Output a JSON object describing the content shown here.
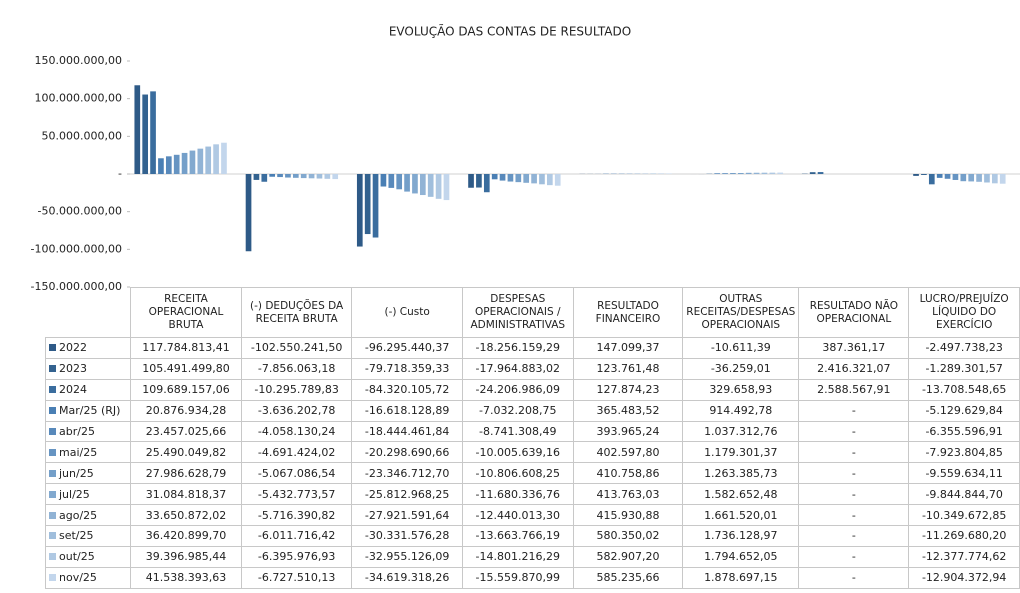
{
  "chart_data": {
    "type": "bar",
    "title": "EVOLUÇÃO DAS CONTAS DE RESULTADO",
    "categories": [
      "RECEITA OPERACIONAL BRUTA",
      "(-) DEDUÇÕES DA RECEITA BRUTA",
      "(-) Custo",
      "DESPESAS OPERACIONAIS / ADMINISTRATIVAS",
      "RESULTADO FINANCEIRO",
      "OUTRAS RECEITAS/DESPESAS OPERACIONAIS",
      "RESULTADO NÃO OPERACIONAL",
      "LUCRO/PREJUÍZO LÍQUIDO DO EXERCÍCIO"
    ],
    "ylim": [
      -150000000,
      150000000
    ],
    "yticks": [
      {
        "value": 150000000,
        "label": "150.000.000,00"
      },
      {
        "value": 100000000,
        "label": "100.000.000,00"
      },
      {
        "value": 50000000,
        "label": "50.000.000,00"
      },
      {
        "value": 0,
        "label": "-"
      },
      {
        "value": -50000000,
        "label": "-50.000.000,00"
      },
      {
        "value": -100000000,
        "label": "-100.000.000,00"
      },
      {
        "value": -150000000,
        "label": "-150.000.000,00"
      }
    ],
    "series": [
      {
        "name": "2022",
        "color": "#2e5a87",
        "values": [
          117784813.41,
          -102550241.5,
          -96295440.37,
          -18256159.29,
          147099.37,
          -10611.39,
          387361.17,
          -2497738.23
        ],
        "value_labels": [
          "117.784.813,41",
          "-102.550.241,50",
          "-96.295.440,37",
          "-18.256.159,29",
          "147.099,37",
          "-10.611,39",
          "387.361,17",
          "-2.497.738,23"
        ]
      },
      {
        "name": "2023",
        "color": "#33628f",
        "values": [
          105491499.8,
          -7856063.18,
          -79718359.33,
          -17964883.02,
          123761.48,
          -36259.01,
          2416321.07,
          -1289301.57
        ],
        "value_labels": [
          "105.491.499,80",
          "-7.856.063,18",
          "-79.718.359,33",
          "-17.964.883,02",
          "123.761,48",
          "-36.259,01",
          "2.416.321,07",
          "-1.289.301,57"
        ]
      },
      {
        "name": "2024",
        "color": "#3a6d9e",
        "values": [
          109689157.06,
          -10295789.83,
          -84320105.72,
          -24206986.09,
          127874.23,
          329658.93,
          2588567.91,
          -13708548.65
        ],
        "value_labels": [
          "109.689.157,06",
          "-10.295.789,83",
          "-84.320.105,72",
          "-24.206.986,09",
          "127.874,23",
          "329.658,93",
          "2.588.567,91",
          "-13.708.548,65"
        ]
      },
      {
        "name": "Mar/25 (RJ)",
        "color": "#4a7fb4",
        "values": [
          20876934.28,
          -3636202.78,
          -16618128.89,
          -7032208.75,
          365483.52,
          914492.78,
          null,
          -5129629.84
        ],
        "value_labels": [
          "20.876.934,28",
          "-3.636.202,78",
          "-16.618.128,89",
          "-7.032.208,75",
          "365.483,52",
          "914.492,78",
          "-",
          "-5.129.629,84"
        ]
      },
      {
        "name": "abr/25",
        "color": "#5889bb",
        "values": [
          23457025.66,
          -4058130.24,
          -18444461.84,
          -8741308.49,
          393965.24,
          1037312.76,
          null,
          -6355596.91
        ],
        "value_labels": [
          "23.457.025,66",
          "-4.058.130,24",
          "-18.444.461,84",
          "-8.741.308,49",
          "393.965,24",
          "1.037.312,76",
          "-",
          "-6.355.596,91"
        ]
      },
      {
        "name": "mai/25",
        "color": "#6694c2",
        "values": [
          25490049.82,
          -4691424.02,
          -20298690.66,
          -10005639.16,
          402597.8,
          1179301.37,
          null,
          -7923804.85
        ],
        "value_labels": [
          "25.490.049,82",
          "-4.691.424,02",
          "-20.298.690,66",
          "-10.005.639,16",
          "402.597,80",
          "1.179.301,37",
          "-",
          "-7.923.804,85"
        ]
      },
      {
        "name": "jun/25",
        "color": "#749fc9",
        "values": [
          27986628.79,
          -5067086.54,
          -23346712.7,
          -10806608.25,
          410758.86,
          1263385.73,
          null,
          -9559634.11
        ],
        "value_labels": [
          "27.986.628,79",
          "-5.067.086,54",
          "-23.346.712,70",
          "-10.806.608,25",
          "410.758,86",
          "1.263.385,73",
          "-",
          "-9.559.634,11"
        ]
      },
      {
        "name": "jul/25",
        "color": "#82a9cf",
        "values": [
          31084818.37,
          -5432773.57,
          -25812968.25,
          -11680336.76,
          413763.03,
          1582652.48,
          null,
          -9844844.7
        ],
        "value_labels": [
          "31.084.818,37",
          "-5.432.773,57",
          "-25.812.968,25",
          "-11.680.336,76",
          "413.763,03",
          "1.582.652,48",
          "-",
          "-9.844.844,70"
        ]
      },
      {
        "name": "ago/25",
        "color": "#91b3d5",
        "values": [
          33650872.02,
          -5716390.82,
          -27921591.64,
          -12440013.3,
          415930.88,
          1661520.01,
          null,
          -10349672.85
        ],
        "value_labels": [
          "33.650.872,02",
          "-5.716.390,82",
          "-27.921.591,64",
          "-12.440.013,30",
          "415.930,88",
          "1.661.520,01",
          "-",
          "-10.349.672,85"
        ]
      },
      {
        "name": "set/25",
        "color": "#a0bedc",
        "values": [
          36420899.7,
          -6011716.42,
          -30331576.28,
          -13663766.19,
          580350.02,
          1736128.97,
          null,
          -11269680.2
        ],
        "value_labels": [
          "36.420.899,70",
          "-6.011.716,42",
          "-30.331.576,28",
          "-13.663.766,19",
          "580.350,02",
          "1.736.128,97",
          "-",
          "-11.269.680,20"
        ]
      },
      {
        "name": "out/25",
        "color": "#b0c9e3",
        "values": [
          39396985.44,
          -6395976.93,
          -32955126.09,
          -14801216.29,
          582907.2,
          1794652.05,
          null,
          -12377774.62
        ],
        "value_labels": [
          "39.396.985,44",
          "-6.395.976,93",
          "-32.955.126,09",
          "-14.801.216,29",
          "582.907,20",
          "1.794.652,05",
          "-",
          "-12.377.774,62"
        ]
      },
      {
        "name": "nov/25",
        "color": "#c3d6ec",
        "values": [
          41538393.63,
          -6727510.13,
          -34619318.26,
          -15559870.99,
          585235.66,
          1878697.15,
          null,
          -12904372.94
        ],
        "value_labels": [
          "41.538.393,63",
          "-6.727.510,13",
          "-34.619.318,26",
          "-15.559.870,99",
          "585.235,66",
          "1.878.697,15",
          "-",
          "-12.904.372,94"
        ]
      }
    ]
  }
}
